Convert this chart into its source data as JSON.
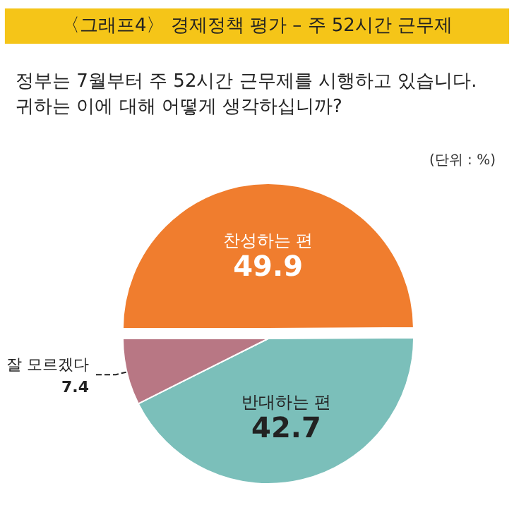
{
  "chart_data": {
    "type": "pie",
    "title": "〈그래프4〉 경제정책 평가 – 주 52시간 근무제",
    "subtitle": "정부는 7월부터 주 52시간 근무제를 시행하고 있습니다. 귀하는 이에 대해 어떻게 생각하십니까?",
    "annotations": [
      "(단위 : %)"
    ],
    "categories": [
      "찬성하는 편",
      "반대하는 편",
      "잘 모르겠다"
    ],
    "values": [
      49.9,
      42.7,
      7.4
    ],
    "colors": [
      "#f07d2e",
      "#7bbfba",
      "#b87784"
    ],
    "data_labels": true
  }
}
